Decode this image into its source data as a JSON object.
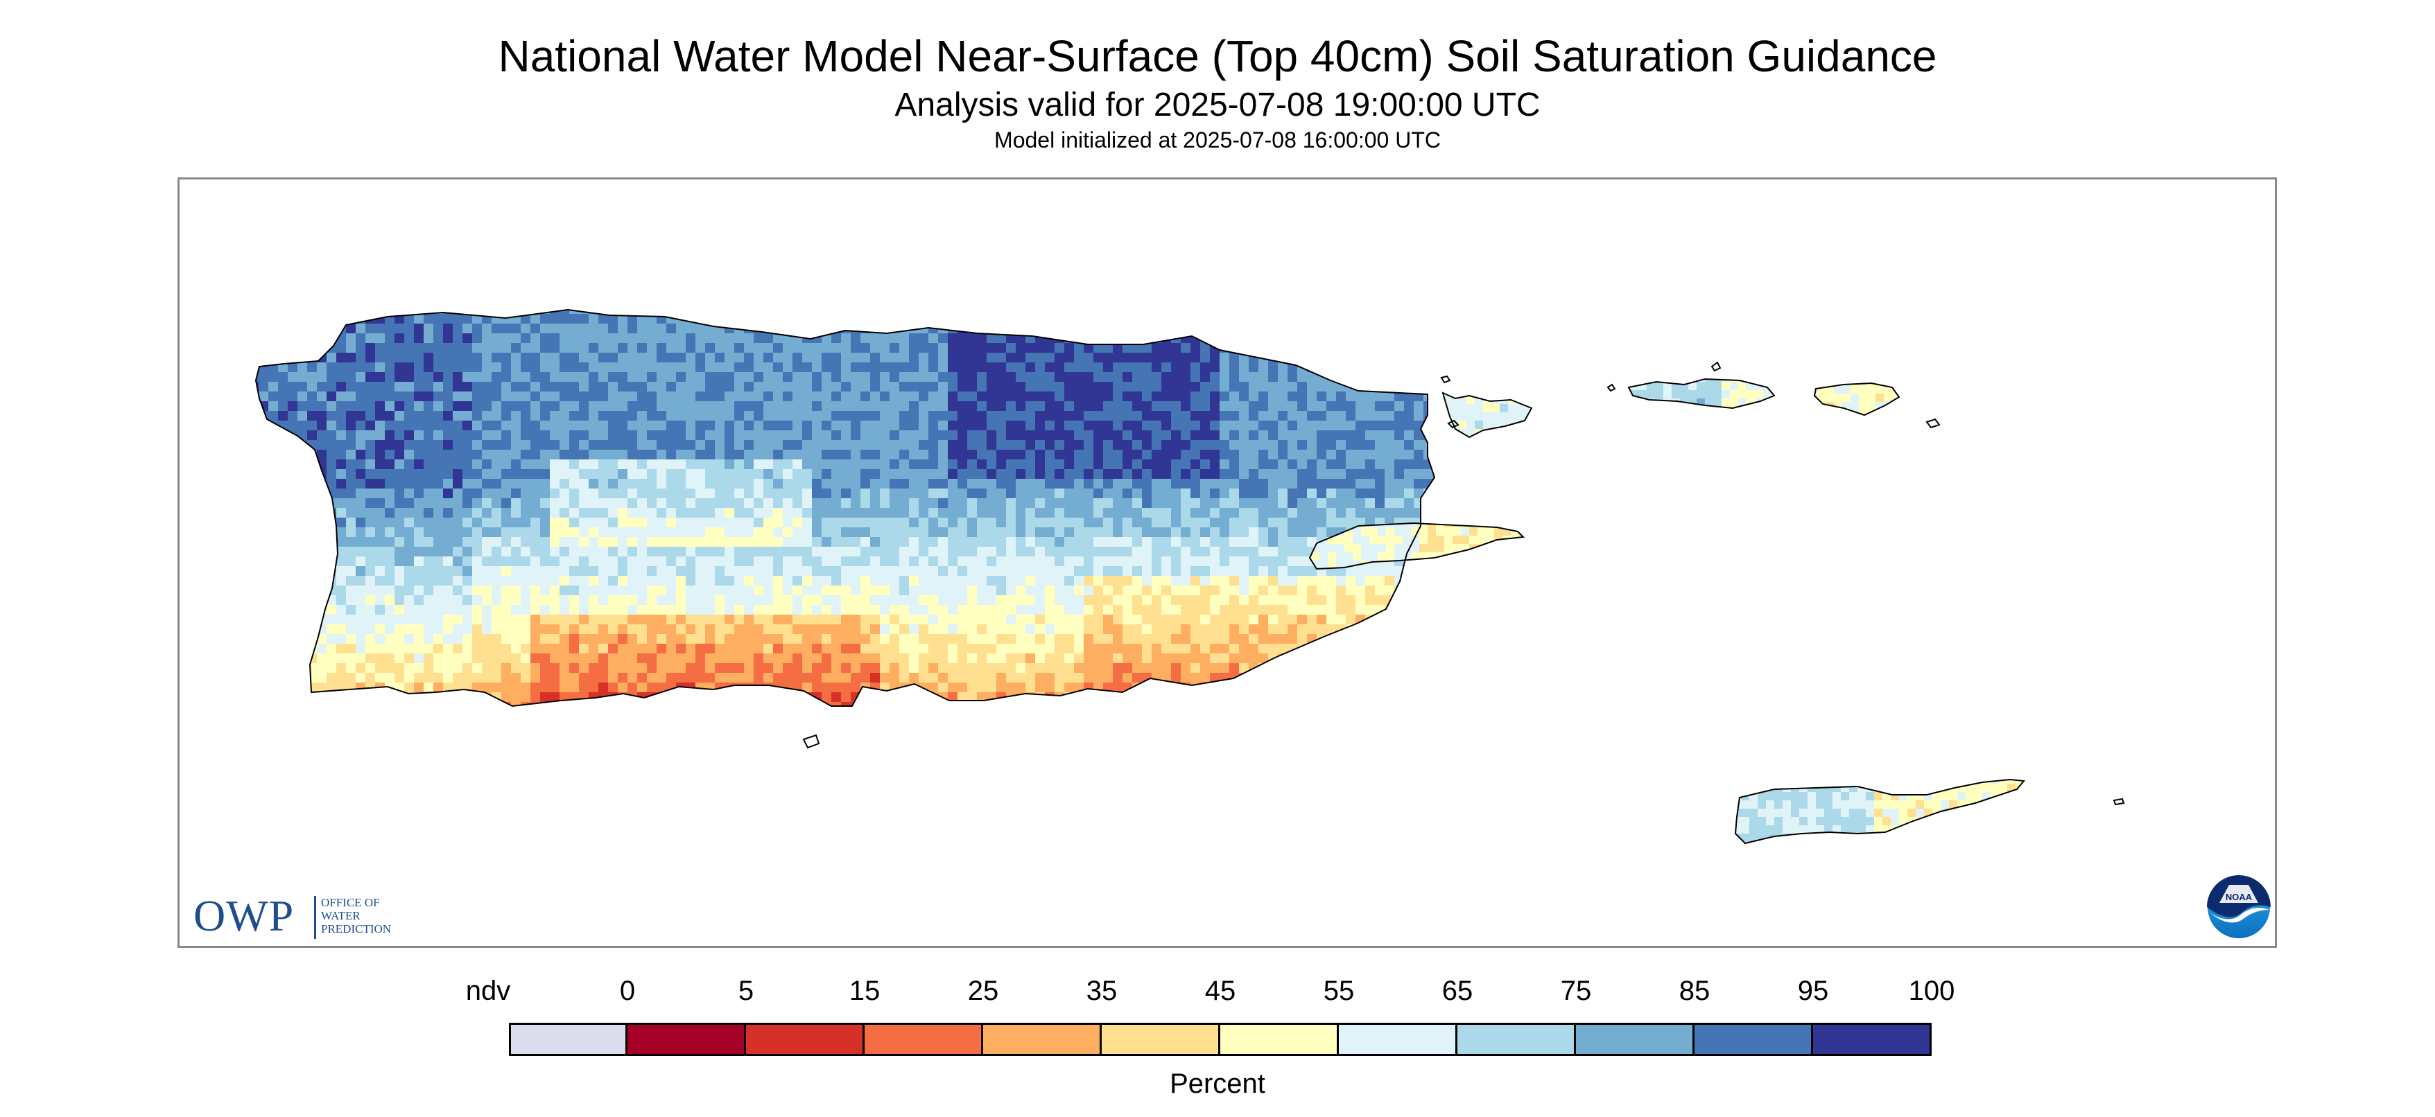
{
  "title": "National Water Model Near-Surface (Top 40cm) Soil Saturation Guidance",
  "subtitle": "Analysis valid for 2025-07-08 19:00:00 UTC",
  "init_line": "Model initialized at 2025-07-08 16:00:00 UTC",
  "logos": {
    "owp_letters": "OWP",
    "owp_words": [
      "OFFICE OF",
      "WATER",
      "PREDICTION"
    ],
    "noaa_text": "NOAA"
  },
  "legend": {
    "unit_label": "Percent",
    "ticks": [
      "ndv",
      "0",
      "5",
      "15",
      "25",
      "35",
      "45",
      "55",
      "65",
      "75",
      "85",
      "95",
      "100"
    ],
    "bins": [
      {
        "label": "ndv",
        "color": "#dcdcef"
      },
      {
        "label": "0-5",
        "color": "#a50026"
      },
      {
        "label": "5-15",
        "color": "#d73027"
      },
      {
        "label": "15-25",
        "color": "#f46d43"
      },
      {
        "label": "25-35",
        "color": "#fdae61"
      },
      {
        "label": "35-45",
        "color": "#fee090"
      },
      {
        "label": "45-55",
        "color": "#ffffbf"
      },
      {
        "label": "55-65",
        "color": "#e0f3f8"
      },
      {
        "label": "65-75",
        "color": "#abd9e9"
      },
      {
        "label": "75-85",
        "color": "#74add1"
      },
      {
        "label": "85-95",
        "color": "#4575b4"
      },
      {
        "label": "95-100",
        "color": "#313695"
      }
    ]
  },
  "map": {
    "regions": [
      "Puerto Rico",
      "Vieques",
      "Culebra",
      "St. Thomas",
      "St. John",
      "St. Croix"
    ]
  }
}
